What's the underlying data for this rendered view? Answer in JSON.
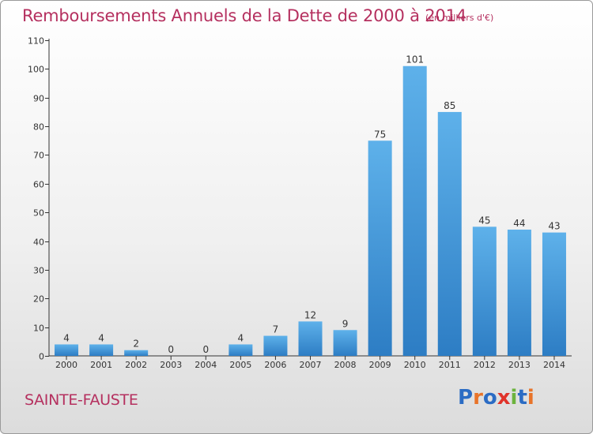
{
  "header": {
    "title": "Remboursements Annuels de la Dette de 2000 à 2014",
    "unit": "(en milliers d'€)"
  },
  "footer": {
    "commune": "SAINTE-FAUSTE",
    "logo_text": "Proxiti"
  },
  "colors": {
    "title": "#b5305f",
    "bar_top": "#5eb1ea",
    "bar_bottom": "#2d7dc4",
    "logo": [
      "#2b6cc4",
      "#e8742a",
      "#2b6cc4",
      "#e0332a",
      "#6cb33e",
      "#2b6cc4",
      "#e8742a"
    ]
  },
  "chart_data": {
    "type": "bar",
    "title": "Remboursements Annuels de la Dette de 2000 à 2014",
    "subtitle": "(en milliers d'€)",
    "categories": [
      "2000",
      "2001",
      "2002",
      "2003",
      "2004",
      "2005",
      "2006",
      "2007",
      "2008",
      "2009",
      "2010",
      "2011",
      "2012",
      "2013",
      "2014"
    ],
    "values": [
      4,
      4,
      2,
      0,
      0,
      4,
      7,
      12,
      9,
      75,
      101,
      85,
      45,
      44,
      43
    ],
    "data_labels": [
      "4",
      "4",
      "2",
      "0",
      "0",
      "4",
      "7",
      "12",
      "9",
      "75",
      "101",
      "85",
      "45",
      "44",
      "43"
    ],
    "ylim": [
      0,
      110
    ],
    "yticks": [
      0,
      10,
      20,
      30,
      40,
      50,
      60,
      70,
      80,
      90,
      100,
      110
    ],
    "xlabel": "",
    "ylabel": "",
    "grid": false,
    "legend": "none"
  }
}
